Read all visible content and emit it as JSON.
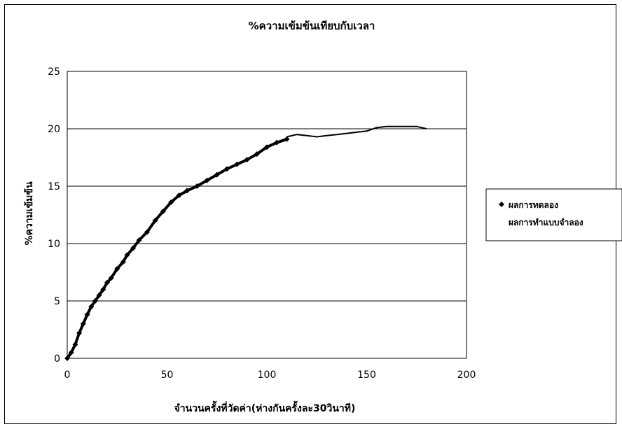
{
  "chart_data": {
    "type": "scatter",
    "title": "%ความเข้มข้นเทียบกับเวลา",
    "xlabel": "จำนวนครั้งที่วัดค่า(ห่างกันครั้งละ30วินาที)",
    "ylabel": "%ความเข้มข้น",
    "xlim": [
      0,
      200
    ],
    "ylim": [
      0,
      25
    ],
    "xticks": [
      "0",
      "50",
      "100",
      "150",
      "200"
    ],
    "yticks": [
      "0",
      "5",
      "10",
      "15",
      "20",
      "25"
    ],
    "grid": "horizontal",
    "legend_position": "right",
    "series": [
      {
        "name": "ผลการทดลอง",
        "marker": "diamond",
        "color": "#000000",
        "x": [
          0,
          2,
          4,
          6,
          8,
          10,
          12,
          14,
          16,
          18,
          20,
          22,
          25,
          28,
          30,
          33,
          36,
          40,
          44,
          48,
          52,
          56,
          60,
          65,
          70,
          75,
          80,
          85,
          90,
          95,
          100,
          105,
          110
        ],
        "y": [
          0,
          0.5,
          1.2,
          2.2,
          3.0,
          3.8,
          4.5,
          5.0,
          5.5,
          6.0,
          6.6,
          7.0,
          7.8,
          8.4,
          9.0,
          9.6,
          10.3,
          11.0,
          12.0,
          12.8,
          13.6,
          14.2,
          14.6,
          15.0,
          15.5,
          16.0,
          16.5,
          16.9,
          17.3,
          17.8,
          18.4,
          18.8,
          19.1
        ]
      },
      {
        "name": "ผลการทำแบบจำลอง",
        "marker": "line",
        "color": "#000000",
        "x": [
          110,
          115,
          120,
          125,
          130,
          135,
          140,
          145,
          150,
          155,
          160,
          165,
          170,
          175,
          180
        ],
        "y": [
          19.3,
          19.5,
          19.4,
          19.3,
          19.4,
          19.5,
          19.6,
          19.7,
          19.8,
          20.1,
          20.2,
          20.2,
          20.2,
          20.2,
          20.0
        ]
      }
    ]
  }
}
